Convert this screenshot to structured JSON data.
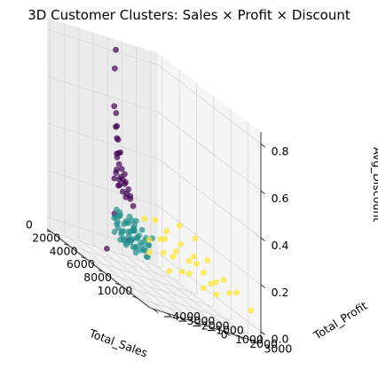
{
  "chart_data": {
    "type": "scatter",
    "projection": "3d",
    "title": "3D Customer Clusters: Sales × Profit × Discount",
    "xlabel": "Total_Sales",
    "ylabel": "Total_Profit",
    "zlabel": "Avg_Discount",
    "xlim": [
      -500,
      11500
    ],
    "ylim": [
      -4200,
      3500
    ],
    "zlim": [
      -0.05,
      0.85
    ],
    "xticks": [
      0,
      2000,
      4000,
      6000,
      8000,
      10000
    ],
    "yticks": [
      -4000,
      -3000,
      -2000,
      -1000,
      0,
      1000,
      2000,
      3000
    ],
    "zticks": [
      0.0,
      0.2,
      0.4,
      0.6,
      0.8
    ],
    "xtick_labels": [
      "0",
      "2000",
      "4000",
      "6000",
      "8000",
      "10000"
    ],
    "ytick_labels": [
      "−4000",
      "−3000",
      "−2000",
      "−1000",
      "0",
      "1000",
      "2000",
      "3000"
    ],
    "ztick_labels": [
      "0.0",
      "0.2",
      "0.4",
      "0.6",
      "0.8"
    ],
    "grid": true,
    "series": [
      {
        "color": "#440154",
        "points": [
          [
            300,
            100,
            0.82
          ],
          [
            350,
            0,
            0.74
          ],
          [
            450,
            -100,
            0.58
          ],
          [
            250,
            150,
            0.55
          ],
          [
            500,
            50,
            0.5
          ],
          [
            800,
            -200,
            0.5
          ],
          [
            600,
            0,
            0.45
          ],
          [
            900,
            -100,
            0.45
          ],
          [
            1000,
            0,
            0.4
          ],
          [
            1300,
            -300,
            0.4
          ],
          [
            400,
            100,
            0.38
          ],
          [
            700,
            -50,
            0.37
          ],
          [
            1100,
            -150,
            0.35
          ],
          [
            1500,
            -200,
            0.34
          ],
          [
            2000,
            -300,
            0.33
          ],
          [
            900,
            -200,
            0.32
          ],
          [
            500,
            0,
            0.3
          ],
          [
            1200,
            -100,
            0.3
          ],
          [
            1700,
            -250,
            0.3
          ],
          [
            2200,
            -350,
            0.3
          ],
          [
            800,
            50,
            0.28
          ],
          [
            1500,
            0,
            0.28
          ],
          [
            2600,
            -400,
            0.28
          ],
          [
            300,
            0,
            0.27
          ],
          [
            1000,
            -50,
            0.26
          ],
          [
            3000,
            -500,
            0.26
          ],
          [
            2000,
            -150,
            0.25
          ],
          [
            600,
            100,
            0.25
          ],
          [
            1200,
            50,
            0.24
          ],
          [
            2500,
            -200,
            0.24
          ],
          [
            3500,
            -600,
            0.23
          ],
          [
            1800,
            -100,
            0.23
          ],
          [
            4000,
            -2200,
            0.18
          ],
          [
            5000,
            -1500,
            0.15
          ],
          [
            6000,
            -2400,
            0.12
          ],
          [
            5800,
            -3800,
            0.05
          ]
        ]
      },
      {
        "color": "#21918c",
        "points": [
          [
            200,
            50,
            0.1
          ],
          [
            400,
            100,
            0.08
          ],
          [
            600,
            150,
            0.12
          ],
          [
            800,
            200,
            0.06
          ],
          [
            1000,
            250,
            0.1
          ],
          [
            1200,
            100,
            0.04
          ],
          [
            1400,
            300,
            0.08
          ],
          [
            1600,
            200,
            0.12
          ],
          [
            1800,
            350,
            0.06
          ],
          [
            2000,
            250,
            0.1
          ],
          [
            2200,
            400,
            0.04
          ],
          [
            2400,
            300,
            0.08
          ],
          [
            300,
            150,
            0.14
          ],
          [
            700,
            250,
            0.05
          ],
          [
            1100,
            350,
            0.11
          ],
          [
            1500,
            100,
            0.03
          ],
          [
            1900,
            150,
            0.09
          ],
          [
            2300,
            200,
            0.13
          ],
          [
            2600,
            450,
            0.07
          ],
          [
            500,
            300,
            0.02
          ],
          [
            900,
            50,
            0.13
          ],
          [
            1300,
            400,
            0.06
          ],
          [
            1700,
            500,
            0.1
          ],
          [
            2100,
            50,
            0.05
          ],
          [
            2500,
            100,
            0.11
          ],
          [
            2800,
            300,
            0.04
          ],
          [
            3000,
            500,
            0.09
          ],
          [
            3200,
            200,
            0.07
          ],
          [
            350,
            200,
            0.09
          ],
          [
            650,
            50,
            0.07
          ],
          [
            950,
            300,
            0.03
          ],
          [
            1250,
            250,
            0.12
          ],
          [
            1550,
            450,
            0.05
          ],
          [
            1850,
            300,
            0.14
          ],
          [
            2150,
            500,
            0.08
          ],
          [
            2450,
            50,
            0.12
          ],
          [
            2750,
            250,
            0.1
          ],
          [
            3100,
            400,
            0.05
          ],
          [
            3400,
            350,
            0.11
          ],
          [
            3600,
            150,
            0.06
          ],
          [
            3800,
            250,
            0.09
          ],
          [
            4000,
            100,
            0.04
          ],
          [
            4200,
            300,
            0.13
          ],
          [
            4500,
            -100,
            0.1
          ],
          [
            5000,
            -1500,
            0.08
          ],
          [
            150,
            100,
            0.04
          ],
          [
            450,
            0,
            0.11
          ],
          [
            750,
            100,
            0.14
          ],
          [
            1050,
            150,
            0.07
          ],
          [
            1350,
            200,
            0.02
          ],
          [
            1650,
            250,
            0.15
          ],
          [
            1950,
            450,
            0.03
          ],
          [
            2250,
            350,
            0.15
          ],
          [
            2550,
            150,
            0.02
          ],
          [
            2850,
            400,
            0.13
          ],
          [
            3300,
            450,
            0.03
          ]
        ]
      },
      {
        "color": "#fde725",
        "points": [
          [
            3000,
            800,
            0.1
          ],
          [
            4000,
            1200,
            0.08
          ],
          [
            5000,
            1500,
            0.12
          ],
          [
            6000,
            1800,
            0.06
          ],
          [
            7000,
            2200,
            0.1
          ],
          [
            8000,
            2500,
            0.04
          ],
          [
            9000,
            2800,
            0.08
          ],
          [
            4500,
            1000,
            0.15
          ],
          [
            5500,
            1600,
            0.05
          ],
          [
            6500,
            2000,
            0.12
          ],
          [
            7500,
            2400,
            0.07
          ],
          [
            3500,
            900,
            0.2
          ],
          [
            4200,
            1300,
            0.18
          ],
          [
            5200,
            1700,
            0.16
          ],
          [
            6200,
            2100,
            0.22
          ],
          [
            3800,
            1100,
            0.13
          ],
          [
            4800,
            1400,
            0.09
          ],
          [
            5800,
            1900,
            0.11
          ],
          [
            6800,
            2300,
            0.03
          ],
          [
            7800,
            2600,
            0.09
          ],
          [
            8500,
            2700,
            0.12
          ],
          [
            3200,
            700,
            0.05
          ],
          [
            4600,
            1250,
            0.02
          ],
          [
            10500,
            3400,
            0.06
          ],
          [
            5300,
            1550,
            0.24
          ],
          [
            6100,
            2050,
            0.14
          ],
          [
            7200,
            2350,
            0.16
          ],
          [
            2800,
            600,
            0.18
          ],
          [
            9500,
            3000,
            0.1
          ]
        ]
      }
    ]
  }
}
